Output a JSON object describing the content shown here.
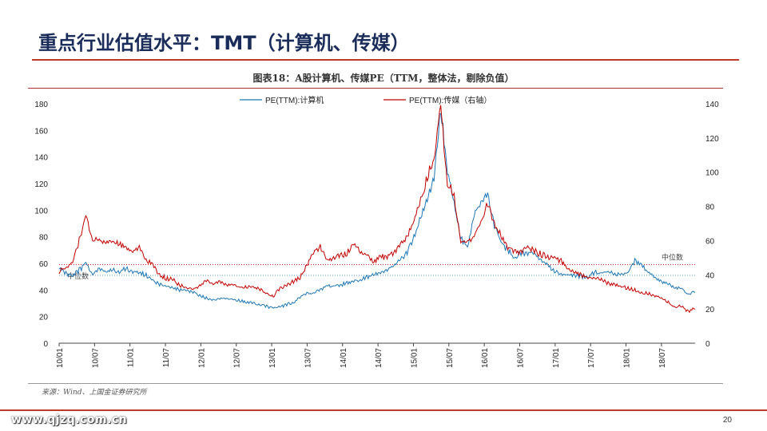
{
  "slide": {
    "title": "重点行业估值水平：TMT（计算机、传媒）",
    "page_number": "20",
    "watermark": "www.qjzq.com.cn",
    "source": "来源：Wind、上国金证券研究所"
  },
  "chart_data": {
    "type": "line",
    "title": "图表18：A股计算机、传媒PE（TTM，整体法，剔除负值）",
    "x_labels": [
      "10/01",
      "10/07",
      "11/01",
      "11/07",
      "12/01",
      "12/07",
      "13/01",
      "13/07",
      "14/01",
      "14/07",
      "15/01",
      "15/07",
      "16/01",
      "16/07",
      "17/01",
      "17/07",
      "18/01",
      "18/07"
    ],
    "left_axis": {
      "min": 0,
      "max": 180,
      "ticks": [
        0,
        20,
        40,
        60,
        80,
        100,
        120,
        140,
        160,
        180
      ]
    },
    "right_axis": {
      "min": 0,
      "max": 140,
      "ticks": [
        0,
        20,
        40,
        60,
        80,
        100,
        120,
        140
      ]
    },
    "series": [
      {
        "name": "PE(TTM):计算机",
        "axis": "left",
        "color": "#1f77b4",
        "values": [
          [
            0,
            57
          ],
          [
            1,
            53
          ],
          [
            2,
            50
          ],
          [
            3,
            55
          ],
          [
            4,
            59
          ],
          [
            5,
            52
          ],
          [
            6,
            56
          ],
          [
            7,
            53
          ],
          [
            8,
            55
          ],
          [
            9,
            54
          ],
          [
            10,
            56
          ],
          [
            11,
            54
          ],
          [
            12,
            53
          ],
          [
            13,
            51
          ],
          [
            14,
            47
          ],
          [
            15,
            44
          ],
          [
            16,
            43
          ],
          [
            17,
            42
          ],
          [
            18,
            40
          ],
          [
            19,
            39
          ],
          [
            20,
            38
          ],
          [
            21,
            36
          ],
          [
            22,
            34
          ],
          [
            23,
            33
          ],
          [
            24,
            34
          ],
          [
            25,
            34
          ],
          [
            26,
            33
          ],
          [
            27,
            32
          ],
          [
            28,
            31
          ],
          [
            29,
            30
          ],
          [
            30,
            29
          ],
          [
            31,
            28
          ],
          [
            32,
            26
          ],
          [
            33,
            27
          ],
          [
            34,
            29
          ],
          [
            35,
            31
          ],
          [
            36,
            34
          ],
          [
            37,
            37
          ],
          [
            38,
            38
          ],
          [
            39,
            40
          ],
          [
            40,
            42
          ],
          [
            41,
            44
          ],
          [
            42,
            44
          ],
          [
            43,
            45
          ],
          [
            44,
            47
          ],
          [
            45,
            48
          ],
          [
            46,
            50
          ],
          [
            47,
            51
          ],
          [
            48,
            53
          ],
          [
            49,
            55
          ],
          [
            50,
            58
          ],
          [
            51,
            62
          ],
          [
            52,
            68
          ],
          [
            53,
            80
          ],
          [
            54,
            95
          ],
          [
            55,
            108
          ],
          [
            56,
            125
          ],
          [
            57,
            175
          ],
          [
            58,
            130
          ],
          [
            59,
            105
          ],
          [
            60,
            80
          ],
          [
            61,
            70
          ],
          [
            62,
            95
          ],
          [
            63,
            105
          ],
          [
            64,
            112
          ],
          [
            65,
            88
          ],
          [
            66,
            75
          ],
          [
            67,
            70
          ],
          [
            68,
            65
          ],
          [
            69,
            67
          ],
          [
            70,
            68
          ],
          [
            71,
            66
          ],
          [
            72,
            62
          ],
          [
            73,
            58
          ],
          [
            74,
            54
          ],
          [
            75,
            52
          ],
          [
            76,
            52
          ],
          [
            77,
            51
          ],
          [
            78,
            50
          ],
          [
            79,
            50
          ],
          [
            80,
            53
          ],
          [
            81,
            54
          ],
          [
            82,
            55
          ],
          [
            83,
            52
          ],
          [
            84,
            51
          ],
          [
            85,
            52
          ],
          [
            86,
            62
          ],
          [
            87,
            58
          ],
          [
            88,
            55
          ],
          [
            89,
            50
          ],
          [
            90,
            46
          ],
          [
            91,
            44
          ],
          [
            92,
            42
          ],
          [
            93,
            40
          ],
          [
            94,
            38
          ],
          [
            95,
            38
          ]
        ]
      },
      {
        "name": "PE(TTM):传媒（右轴）",
        "axis": "right",
        "color": "#c00000",
        "values": [
          [
            0,
            42
          ],
          [
            1,
            44
          ],
          [
            2,
            46
          ],
          [
            3,
            60
          ],
          [
            4,
            75
          ],
          [
            5,
            62
          ],
          [
            6,
            60
          ],
          [
            7,
            60
          ],
          [
            8,
            59
          ],
          [
            9,
            58
          ],
          [
            10,
            55
          ],
          [
            11,
            53
          ],
          [
            12,
            56
          ],
          [
            13,
            49
          ],
          [
            14,
            45
          ],
          [
            15,
            40
          ],
          [
            16,
            38
          ],
          [
            17,
            37
          ],
          [
            18,
            34
          ],
          [
            19,
            33
          ],
          [
            20,
            31
          ],
          [
            21,
            34
          ],
          [
            22,
            37
          ],
          [
            23,
            35
          ],
          [
            24,
            36
          ],
          [
            25,
            34
          ],
          [
            26,
            34
          ],
          [
            27,
            33
          ],
          [
            28,
            33
          ],
          [
            29,
            33
          ],
          [
            30,
            31
          ],
          [
            31,
            30
          ],
          [
            32,
            28
          ],
          [
            33,
            32
          ],
          [
            34,
            34
          ],
          [
            35,
            36
          ],
          [
            36,
            38
          ],
          [
            37,
            46
          ],
          [
            38,
            52
          ],
          [
            39,
            57
          ],
          [
            40,
            48
          ],
          [
            41,
            50
          ],
          [
            42,
            51
          ],
          [
            43,
            53
          ],
          [
            44,
            59
          ],
          [
            45,
            52
          ],
          [
            46,
            51
          ],
          [
            47,
            48
          ],
          [
            48,
            50
          ],
          [
            49,
            51
          ],
          [
            50,
            52
          ],
          [
            51,
            57
          ],
          [
            52,
            62
          ],
          [
            53,
            72
          ],
          [
            54,
            84
          ],
          [
            55,
            98
          ],
          [
            56,
            110
          ],
          [
            57,
            138
          ],
          [
            58,
            95
          ],
          [
            59,
            85
          ],
          [
            60,
            58
          ],
          [
            61,
            58
          ],
          [
            62,
            64
          ],
          [
            63,
            72
          ],
          [
            64,
            82
          ],
          [
            65,
            71
          ],
          [
            66,
            63
          ],
          [
            67,
            55
          ],
          [
            68,
            53
          ],
          [
            69,
            54
          ],
          [
            70,
            56
          ],
          [
            71,
            54
          ],
          [
            72,
            52
          ],
          [
            73,
            50
          ],
          [
            74,
            49
          ],
          [
            75,
            48
          ],
          [
            76,
            44
          ],
          [
            77,
            42
          ],
          [
            78,
            40
          ],
          [
            79,
            38
          ],
          [
            80,
            38
          ],
          [
            81,
            37
          ],
          [
            82,
            35
          ],
          [
            83,
            34
          ],
          [
            84,
            33
          ],
          [
            85,
            32
          ],
          [
            86,
            31
          ],
          [
            87,
            30
          ],
          [
            88,
            29
          ],
          [
            89,
            28
          ],
          [
            90,
            26
          ],
          [
            91,
            24
          ],
          [
            92,
            22
          ],
          [
            93,
            21
          ],
          [
            94,
            19
          ],
          [
            95,
            20
          ]
        ]
      }
    ],
    "reference_lines": [
      {
        "axis": "right",
        "value": 46,
        "color": "#c00000",
        "label": "中位数"
      },
      {
        "axis": "left",
        "value": 51,
        "color": "#1f77b4",
        "label": "中位数"
      }
    ]
  }
}
